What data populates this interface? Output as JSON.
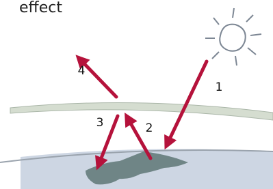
{
  "title": "effect",
  "arrows": [
    {
      "label": "1"
    },
    {
      "label": "2"
    },
    {
      "label": "3"
    },
    {
      "label": "4"
    }
  ]
}
